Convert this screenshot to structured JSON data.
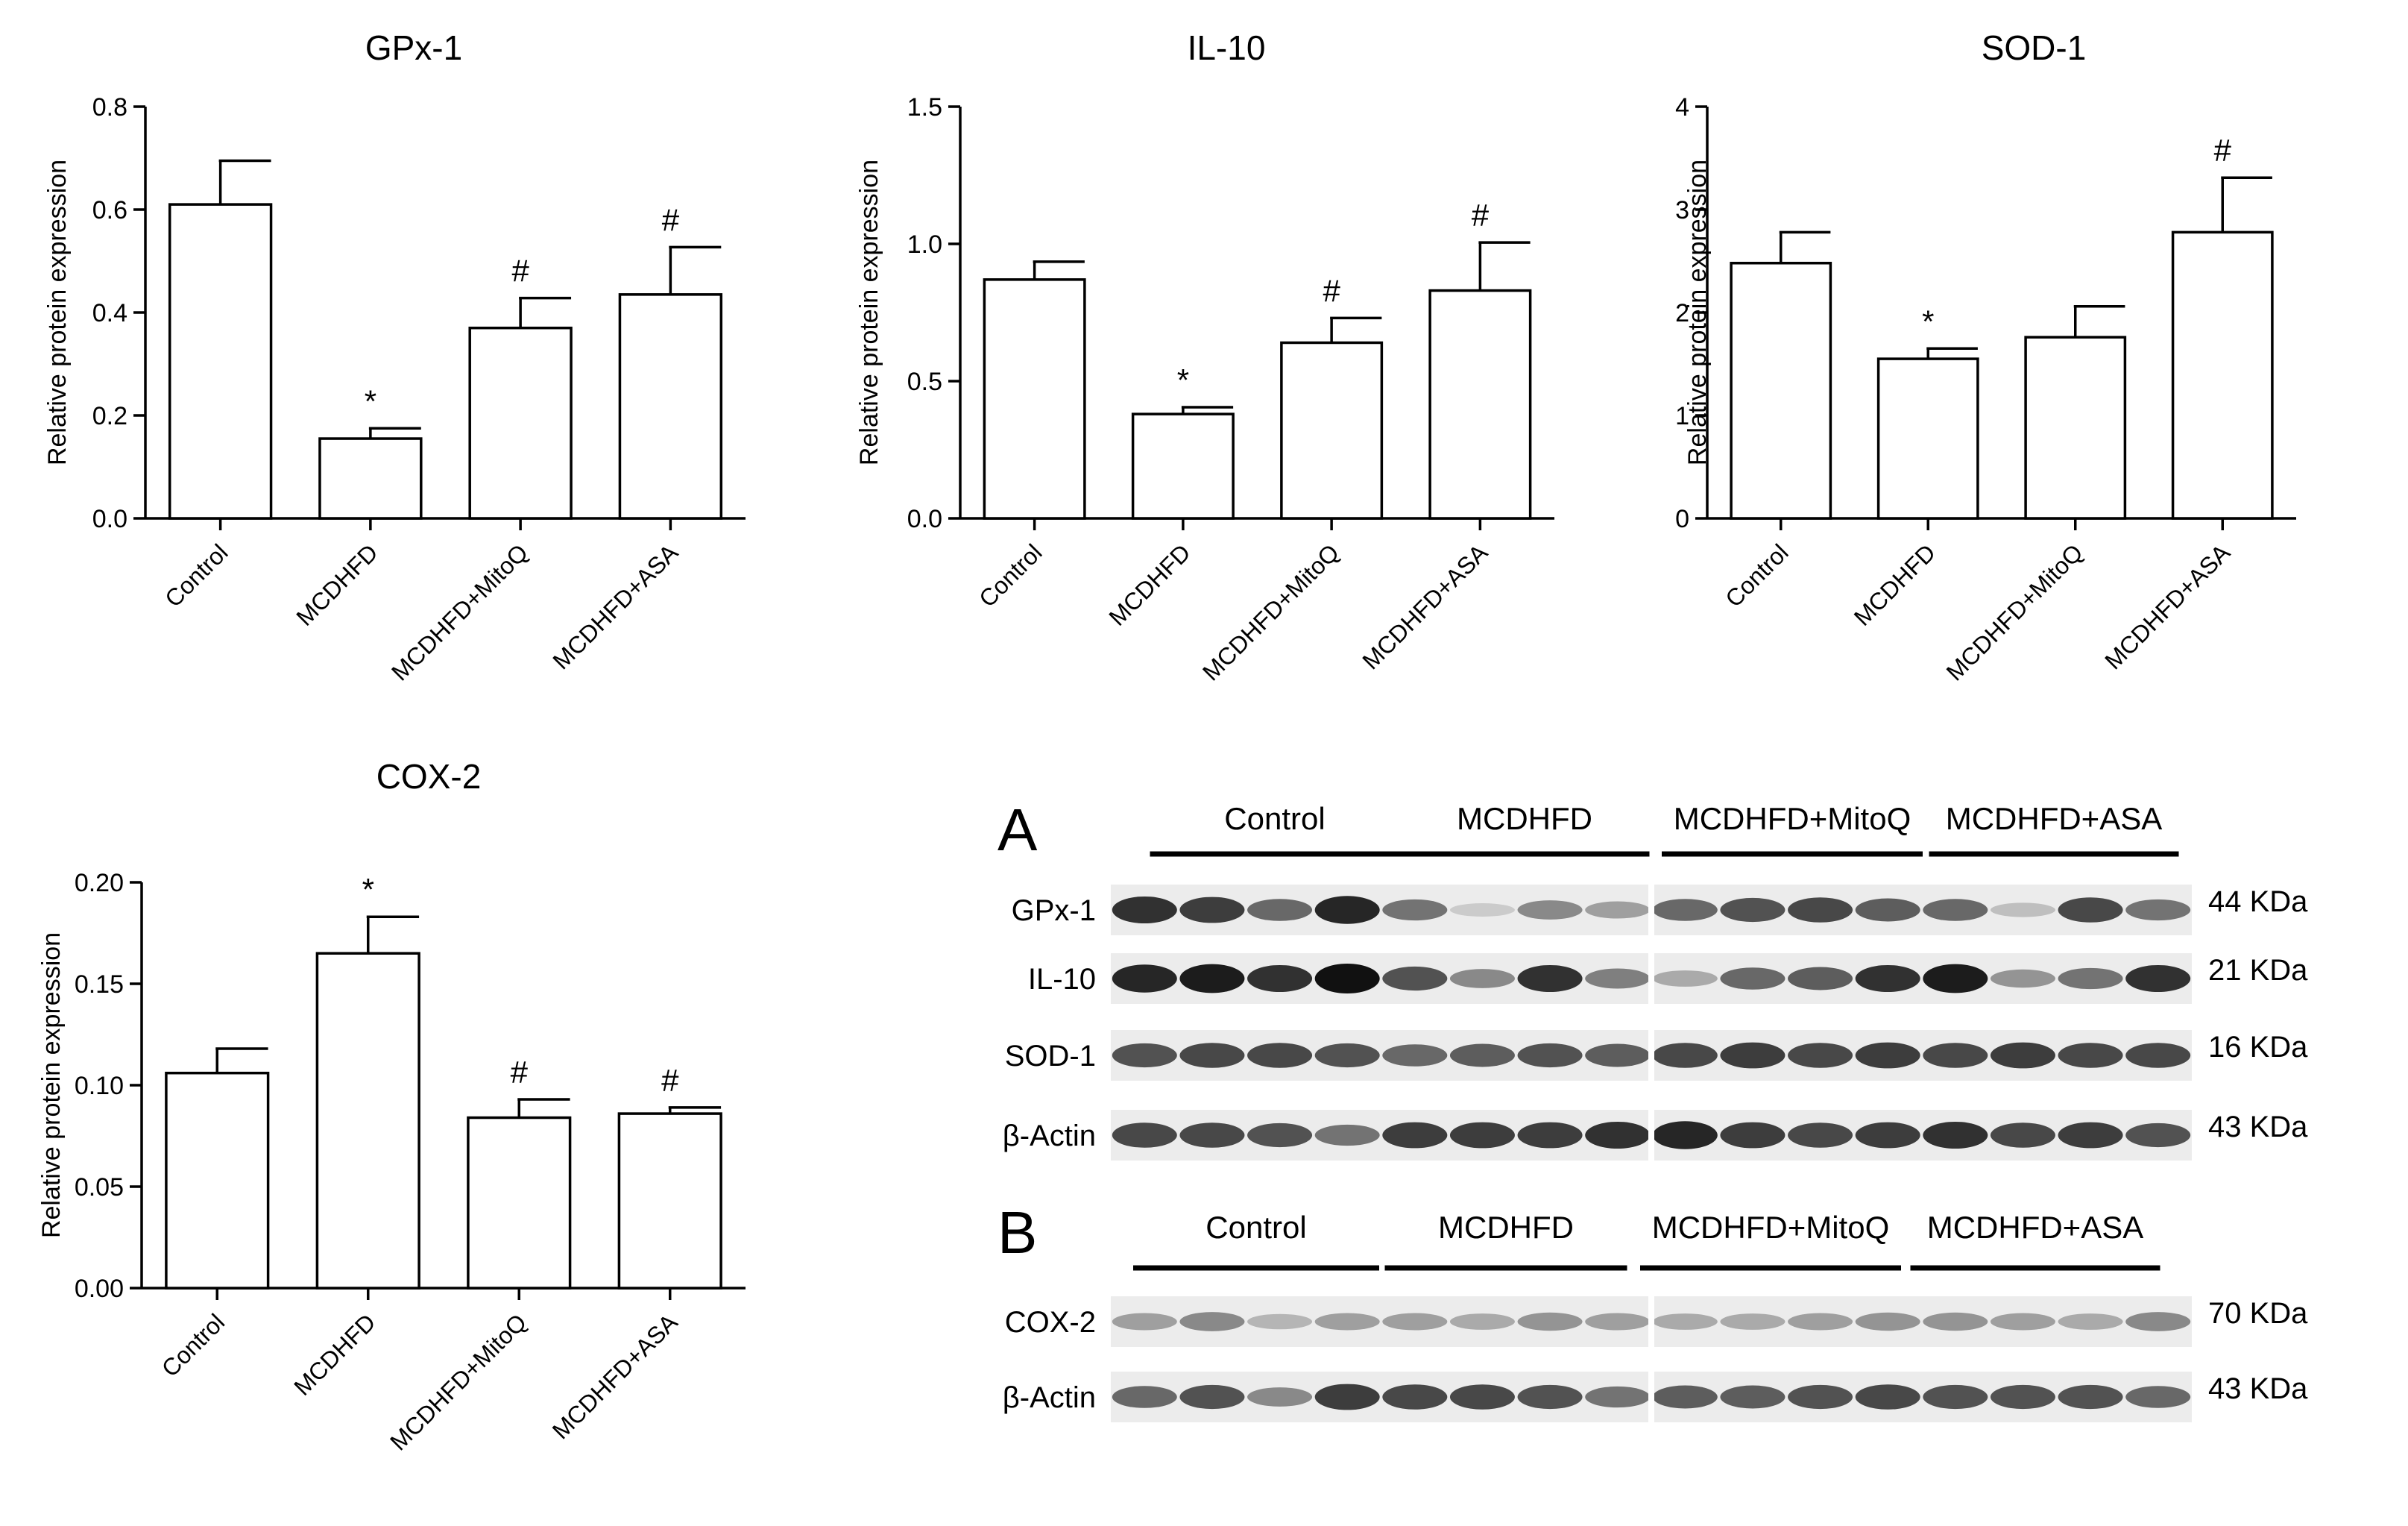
{
  "chart_data": [
    {
      "type": "bar",
      "title": "GPx-1",
      "ylabel": "Relative protein expression",
      "xlabel": "",
      "categories": [
        "Control",
        "MCDHFD",
        "MCDHFD+MitoQ",
        "MCDHFD+ASA"
      ],
      "values": [
        0.61,
        0.155,
        0.37,
        0.435
      ],
      "errors": [
        0.085,
        0.02,
        0.058,
        0.092
      ],
      "annotations": [
        "",
        "*",
        "#",
        "#"
      ],
      "ylim": [
        0,
        0.8
      ],
      "yticks": [
        "0.0",
        "0.2",
        "0.4",
        "0.6",
        "0.8"
      ]
    },
    {
      "type": "bar",
      "title": "IL-10",
      "ylabel": "Relative protein expression",
      "xlabel": "",
      "categories": [
        "Control",
        "MCDHFD",
        "MCDHFD+MitoQ",
        "MCDHFD+ASA"
      ],
      "values": [
        0.87,
        0.38,
        0.64,
        0.83
      ],
      "errors": [
        0.065,
        0.025,
        0.09,
        0.175
      ],
      "annotations": [
        "",
        "*",
        "#",
        "#"
      ],
      "ylim": [
        0,
        1.5
      ],
      "yticks": [
        "0.0",
        "0.5",
        "1.0",
        "1.5"
      ]
    },
    {
      "type": "bar",
      "title": "SOD-1",
      "ylabel": "Relative protein expression",
      "xlabel": "",
      "categories": [
        "Control",
        "MCDHFD",
        "MCDHFD+MitoQ",
        "MCDHFD+ASA"
      ],
      "values": [
        2.48,
        1.55,
        1.76,
        2.78
      ],
      "errors": [
        0.3,
        0.1,
        0.3,
        0.53
      ],
      "annotations": [
        "",
        "*",
        "",
        "#"
      ],
      "ylim": [
        0,
        4
      ],
      "yticks": [
        "0",
        "1",
        "2",
        "3",
        "4"
      ]
    },
    {
      "type": "bar",
      "title": "COX-2",
      "ylabel": "Relative protein expression",
      "xlabel": "",
      "categories": [
        "Control",
        "MCDHFD",
        "MCDHFD+MitoQ",
        "MCDHFD+ASA"
      ],
      "values": [
        0.106,
        0.165,
        0.084,
        0.086
      ],
      "errors": [
        0.012,
        0.018,
        0.009,
        0.003
      ],
      "annotations": [
        "",
        "*",
        "#",
        "#"
      ],
      "ylim": [
        0,
        0.2
      ],
      "yticks": [
        "0.00",
        "0.05",
        "0.10",
        "0.15",
        "0.20"
      ]
    }
  ],
  "blots": [
    {
      "panel_label": "A",
      "groups": [
        "Control",
        "MCDHFD",
        "MCDHFD+MitoQ",
        "MCDHFD+ASA"
      ],
      "rows": [
        {
          "label": "GPx-1",
          "size": "44 KDa",
          "intensity": [
            0.85,
            0.8,
            0.6,
            0.9,
            0.55,
            0.15,
            0.45,
            0.35,
            0.6,
            0.7,
            0.75,
            0.65,
            0.6,
            0.2,
            0.75,
            0.55
          ]
        },
        {
          "label": "IL-10",
          "size": "21 KDa",
          "intensity": [
            0.9,
            0.95,
            0.85,
            1.0,
            0.7,
            0.45,
            0.85,
            0.5,
            0.3,
            0.6,
            0.65,
            0.85,
            0.95,
            0.4,
            0.55,
            0.85
          ]
        },
        {
          "label": "SOD-1",
          "size": "16 KDa",
          "intensity": [
            0.7,
            0.75,
            0.75,
            0.7,
            0.6,
            0.65,
            0.7,
            0.65,
            0.75,
            0.8,
            0.75,
            0.8,
            0.75,
            0.8,
            0.75,
            0.75
          ]
        },
        {
          "label": "β-Actin",
          "size": "43 KDa",
          "intensity": [
            0.75,
            0.75,
            0.7,
            0.55,
            0.8,
            0.8,
            0.8,
            0.85,
            0.9,
            0.8,
            0.75,
            0.8,
            0.85,
            0.75,
            0.8,
            0.7
          ]
        }
      ]
    },
    {
      "panel_label": "B",
      "groups": [
        "Control",
        "MCDHFD",
        "MCDHFD+MitoQ",
        "MCDHFD+ASA"
      ],
      "rows": [
        {
          "label": "COX-2",
          "size": "70 KDa",
          "intensity": [
            0.35,
            0.45,
            0.25,
            0.35,
            0.35,
            0.3,
            0.4,
            0.35,
            0.3,
            0.3,
            0.35,
            0.4,
            0.4,
            0.35,
            0.3,
            0.45
          ]
        },
        {
          "label": "β-Actin",
          "size": "43 KDa",
          "intensity": [
            0.6,
            0.7,
            0.45,
            0.8,
            0.75,
            0.75,
            0.7,
            0.55,
            0.65,
            0.65,
            0.7,
            0.75,
            0.7,
            0.7,
            0.7,
            0.6
          ]
        }
      ]
    }
  ],
  "colors": {
    "bar_fill": "#ffffff",
    "bar_stroke": "#000000",
    "blot_background": "#ececec",
    "band": "#111111"
  }
}
